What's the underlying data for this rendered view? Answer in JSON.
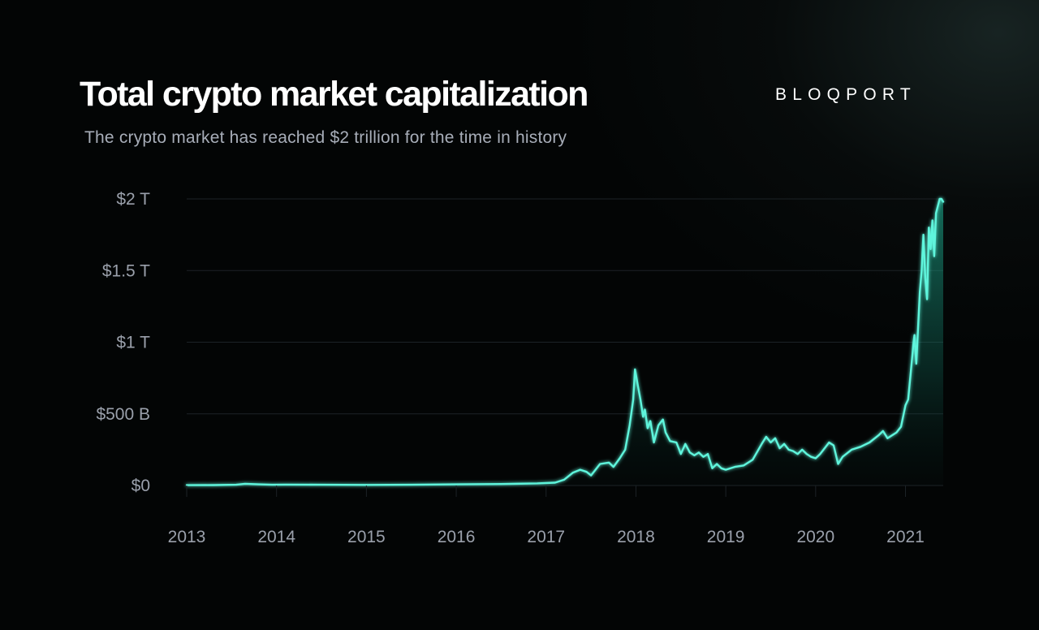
{
  "header": {
    "title": "Total crypto market capitalization",
    "subtitle": "The crypto market has reached $2 trillion for the time in history",
    "brand": "BLOQPORT"
  },
  "colors": {
    "background": "#030505",
    "line": "#5ef5dc",
    "fill": "#1fbf9e",
    "grid": "#1c2226",
    "text_muted": "#9aa0ab"
  },
  "chart_data": {
    "type": "area",
    "title": "Total crypto market capitalization",
    "subtitle": "The crypto market has reached $2 trillion for the time in history",
    "xlabel": "",
    "ylabel": "",
    "xlim": [
      2013.0,
      2021.42
    ],
    "ylim": [
      0,
      2000
    ],
    "y_unit": "billion USD",
    "grid": true,
    "legend": "none",
    "x_ticks": [
      {
        "value": 2013,
        "label": "2013"
      },
      {
        "value": 2014,
        "label": "2014"
      },
      {
        "value": 2015,
        "label": "2015"
      },
      {
        "value": 2016,
        "label": "2016"
      },
      {
        "value": 2017,
        "label": "2017"
      },
      {
        "value": 2018,
        "label": "2018"
      },
      {
        "value": 2019,
        "label": "2019"
      },
      {
        "value": 2020,
        "label": "2020"
      },
      {
        "value": 2021,
        "label": "2021"
      }
    ],
    "y_ticks": [
      {
        "value": 0,
        "label": "$0"
      },
      {
        "value": 500,
        "label": "$500 B"
      },
      {
        "value": 1000,
        "label": "$1 T"
      },
      {
        "value": 1500,
        "label": "$1.5 T"
      },
      {
        "value": 2000,
        "label": "$2 T"
      }
    ],
    "series": [
      {
        "x": [
          2013.0,
          2013.3,
          2013.55,
          2013.65,
          2013.8,
          2013.95,
          2014.1,
          2014.5,
          2015.0,
          2015.5,
          2016.0,
          2016.5,
          2016.9,
          2017.1,
          2017.2,
          2017.3,
          2017.38,
          2017.45,
          2017.5,
          2017.6,
          2017.7,
          2017.75,
          2017.82,
          2017.88,
          2017.93,
          2017.97,
          2017.99,
          2018.02,
          2018.05,
          2018.08,
          2018.1,
          2018.13,
          2018.16,
          2018.2,
          2018.25,
          2018.3,
          2018.33,
          2018.38,
          2018.45,
          2018.5,
          2018.55,
          2018.6,
          2018.65,
          2018.7,
          2018.75,
          2018.8,
          2018.85,
          2018.9,
          2018.95,
          2019.0,
          2019.1,
          2019.2,
          2019.3,
          2019.4,
          2019.45,
          2019.5,
          2019.55,
          2019.6,
          2019.65,
          2019.7,
          2019.75,
          2019.8,
          2019.85,
          2019.9,
          2019.95,
          2020.0,
          2020.05,
          2020.1,
          2020.15,
          2020.2,
          2020.25,
          2020.3,
          2020.4,
          2020.5,
          2020.6,
          2020.7,
          2020.75,
          2020.8,
          2020.85,
          2020.9,
          2020.95,
          2021.0,
          2021.03,
          2021.06,
          2021.09,
          2021.1,
          2021.12,
          2021.14,
          2021.16,
          2021.18,
          2021.2,
          2021.22,
          2021.24,
          2021.26,
          2021.28,
          2021.3,
          2021.32,
          2021.34,
          2021.36,
          2021.38,
          2021.4,
          2021.42
        ],
        "values": [
          2,
          3,
          5,
          12,
          8,
          5,
          6,
          5,
          4,
          5,
          8,
          10,
          15,
          20,
          40,
          90,
          110,
          95,
          70,
          150,
          160,
          130,
          190,
          250,
          420,
          600,
          810,
          700,
          600,
          480,
          530,
          400,
          450,
          300,
          420,
          460,
          370,
          310,
          300,
          220,
          290,
          230,
          210,
          230,
          200,
          220,
          120,
          150,
          120,
          110,
          130,
          140,
          180,
          290,
          340,
          300,
          330,
          260,
          290,
          250,
          240,
          220,
          250,
          220,
          200,
          190,
          220,
          260,
          300,
          280,
          150,
          200,
          250,
          270,
          300,
          350,
          380,
          330,
          350,
          370,
          410,
          560,
          600,
          800,
          1000,
          1050,
          850,
          1100,
          1350,
          1500,
          1750,
          1450,
          1300,
          1800,
          1650,
          1850,
          1600,
          1900,
          1950,
          2000,
          2000,
          1980
        ]
      }
    ]
  }
}
